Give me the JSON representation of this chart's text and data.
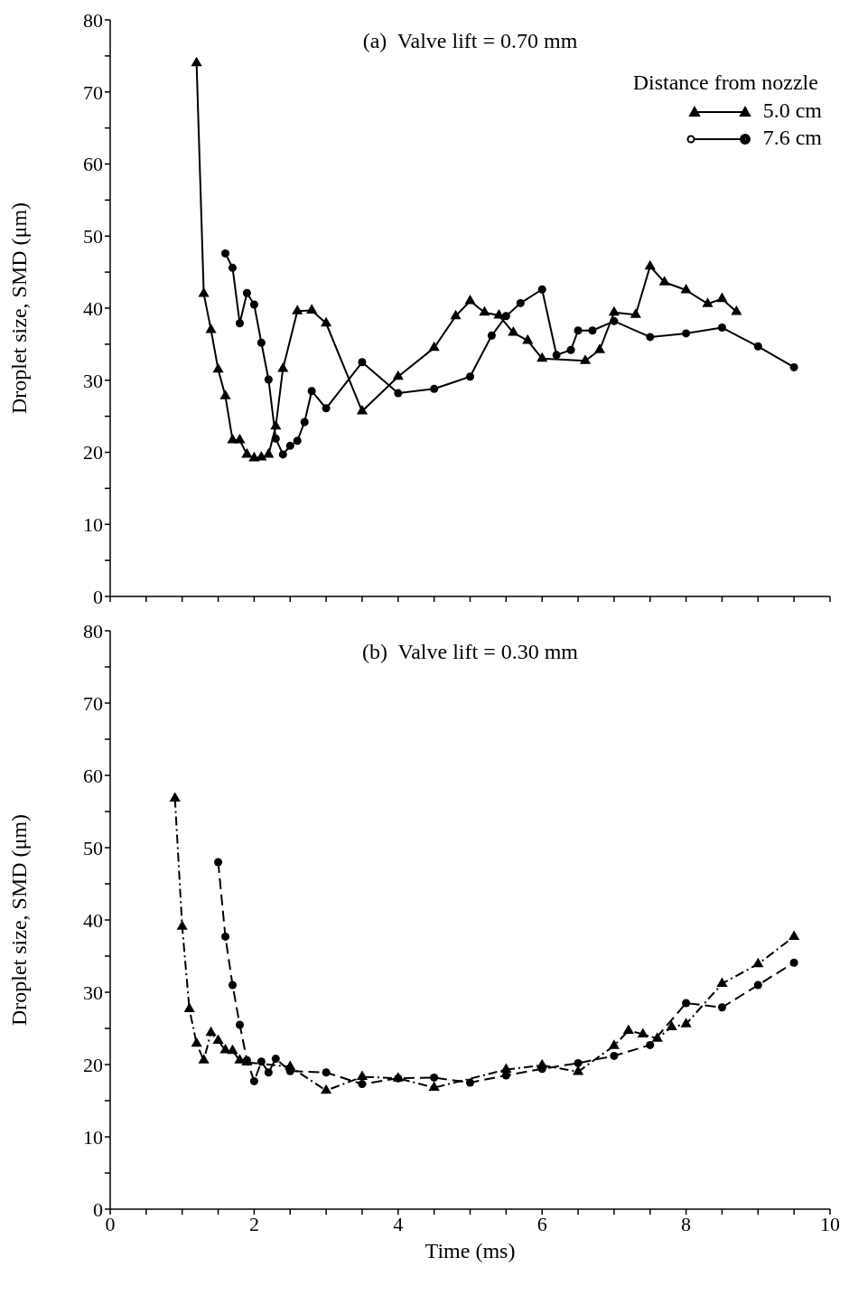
{
  "chart_data": [
    {
      "type": "line",
      "title": "(a)  Valve lift = 0.70 mm",
      "ylabel": "Droplet size, SMD (μm)",
      "legend_title": "Distance from nozzle",
      "legend": "top right",
      "grid": false,
      "tick_labels": "y",
      "line_style": "solid",
      "xlim": [
        0,
        10
      ],
      "xticks": [
        0,
        {
          "value": 0.5,
          "label": null
        },
        {
          "value": 1,
          "label": null
        },
        {
          "value": 1.5,
          "label": null
        },
        2,
        {
          "value": 2.5,
          "label": null
        },
        {
          "value": 3,
          "label": null
        },
        {
          "value": 3.5,
          "label": null
        },
        4,
        {
          "value": 4.5,
          "label": null
        },
        {
          "value": 5,
          "label": null
        },
        {
          "value": 5.5,
          "label": null
        },
        6,
        {
          "value": 6.5,
          "label": null
        },
        {
          "value": 7,
          "label": null
        },
        {
          "value": 7.5,
          "label": null
        },
        8,
        {
          "value": 8.5,
          "label": null
        },
        {
          "value": 9,
          "label": null
        },
        {
          "value": 9.5,
          "label": null
        },
        10
      ],
      "ylim": [
        0,
        80
      ],
      "yticks": [
        0,
        {
          "value": 5,
          "label": null
        },
        10,
        {
          "value": 15,
          "label": null
        },
        20,
        {
          "value": 25,
          "label": null
        },
        30,
        {
          "value": 35,
          "label": null
        },
        40,
        {
          "value": 45,
          "label": null
        },
        50,
        {
          "value": 55,
          "label": null
        },
        60,
        {
          "value": 65,
          "label": null
        },
        70,
        {
          "value": 75,
          "label": null
        },
        80
      ],
      "series": [
        {
          "name": "5.0 cm",
          "color": "#000000",
          "marker": "triangle",
          "x": [
            1.2,
            1.3,
            1.4,
            1.5,
            1.6,
            1.7,
            1.8,
            1.9,
            2.0,
            2.1,
            2.2,
            2.3,
            2.4,
            2.6,
            2.8,
            3.0,
            3.5,
            4.0,
            4.5,
            4.8,
            5.0,
            5.2,
            5.4,
            5.6,
            5.8,
            6.0,
            6.6,
            6.8,
            7.0,
            7.3,
            7.5,
            7.7,
            8.0,
            8.3,
            8.5,
            8.7
          ],
          "values": [
            74,
            42,
            37,
            31.5,
            27.8,
            21.7,
            21.7,
            19.7,
            19.2,
            19.3,
            19.7,
            23.6,
            31.6,
            39.6,
            39.7,
            37.9,
            25.7,
            30.5,
            34.5,
            38.9,
            41,
            39.4,
            39,
            36.6,
            35.5,
            33,
            32.7,
            34.2,
            39.4,
            39.1,
            45.8,
            43.6,
            42.5,
            40.6,
            41.3,
            39.5
          ]
        },
        {
          "name": "7.6 cm",
          "color": "#000000",
          "marker": "circle",
          "x": [
            1.6,
            1.7,
            1.8,
            1.9,
            2.0,
            2.1,
            2.2,
            2.3,
            2.4,
            2.5,
            2.6,
            2.7,
            2.8,
            3.0,
            3.5,
            4.0,
            4.5,
            5.0,
            5.3,
            5.5,
            5.7,
            6.0,
            6.2,
            6.4,
            6.5,
            6.7,
            7.0,
            7.5,
            8.0,
            8.5,
            9.0,
            9.5
          ],
          "values": [
            47.6,
            45.6,
            37.9,
            42.1,
            40.5,
            35.2,
            30.1,
            21.9,
            19.7,
            20.9,
            21.6,
            24.2,
            28.5,
            26.1,
            32.5,
            28.2,
            28.8,
            30.5,
            36.2,
            38.9,
            40.7,
            42.6,
            33.5,
            34.2,
            36.9,
            36.9,
            38.2,
            36,
            36.5,
            37.3,
            34.7,
            31.8
          ]
        }
      ]
    },
    {
      "type": "line",
      "title": "(b)  Valve lift = 0.30 mm",
      "xlabel": "Time (ms)",
      "ylabel": "Droplet size, SMD (μm)",
      "grid": false,
      "xlim": [
        0,
        10
      ],
      "xticks": [
        0,
        {
          "value": 0.5,
          "label": null
        },
        {
          "value": 1,
          "label": null
        },
        {
          "value": 1.5,
          "label": null
        },
        2,
        {
          "value": 2.5,
          "label": null
        },
        {
          "value": 3,
          "label": null
        },
        {
          "value": 3.5,
          "label": null
        },
        4,
        {
          "value": 4.5,
          "label": null
        },
        {
          "value": 5,
          "label": null
        },
        {
          "value": 5.5,
          "label": null
        },
        6,
        {
          "value": 6.5,
          "label": null
        },
        {
          "value": 7,
          "label": null
        },
        {
          "value": 7.5,
          "label": null
        },
        8,
        {
          "value": 8.5,
          "label": null
        },
        {
          "value": 9,
          "label": null
        },
        {
          "value": 9.5,
          "label": null
        },
        10
      ],
      "ylim": [
        0,
        80
      ],
      "yticks": [
        0,
        {
          "value": 5,
          "label": null
        },
        10,
        {
          "value": 15,
          "label": null
        },
        20,
        {
          "value": 25,
          "label": null
        },
        30,
        {
          "value": 35,
          "label": null
        },
        40,
        {
          "value": 45,
          "label": null
        },
        50,
        {
          "value": 55,
          "label": null
        },
        60,
        {
          "value": 65,
          "label": null
        },
        70,
        {
          "value": 75,
          "label": null
        },
        80
      ],
      "series": [
        {
          "color": "#000000",
          "marker": "triangle",
          "line_style": "dotted",
          "x": [
            0.9,
            1.0,
            1.1,
            1.2,
            1.3,
            1.4,
            1.5,
            1.6,
            1.7,
            1.8,
            1.9,
            2.5,
            3.0,
            3.5,
            4.0,
            4.5,
            5.5,
            6.0,
            6.5,
            7.0,
            7.2,
            7.4,
            7.6,
            7.8,
            8.0,
            8.5,
            9.0,
            9.5
          ],
          "values": [
            56.8,
            39.1,
            27.7,
            22.9,
            20.6,
            24.4,
            23.3,
            22,
            21.9,
            20.6,
            20.3,
            19.7,
            16.4,
            18.3,
            18.1,
            16.8,
            19.3,
            19.9,
            19,
            22.6,
            24.7,
            24.2,
            23.6,
            25.2,
            25.6,
            31.2,
            33.9,
            37.7
          ]
        },
        {
          "color": "#000000",
          "marker": "circle",
          "line_style": "dashed",
          "x": [
            1.5,
            1.6,
            1.7,
            1.8,
            1.9,
            2.0,
            2.1,
            2.2,
            2.3,
            2.5,
            3.0,
            3.5,
            4.0,
            4.5,
            5.0,
            5.5,
            6.0,
            6.5,
            7.0,
            7.5,
            8.0,
            8.5,
            9.0,
            9.5
          ],
          "values": [
            48,
            37.7,
            31,
            25.5,
            20.6,
            17.7,
            20.4,
            18.9,
            20.8,
            19.1,
            18.9,
            17.3,
            18.1,
            18.2,
            17.5,
            18.5,
            19.4,
            20.2,
            21.2,
            22.7,
            28.5,
            27.9,
            31,
            34.1
          ]
        }
      ]
    }
  ]
}
